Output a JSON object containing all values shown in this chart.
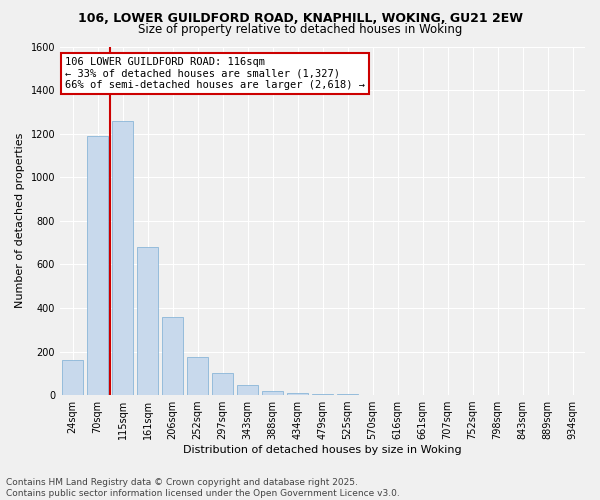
{
  "title_line1": "106, LOWER GUILDFORD ROAD, KNAPHILL, WOKING, GU21 2EW",
  "title_line2": "Size of property relative to detached houses in Woking",
  "xlabel": "Distribution of detached houses by size in Woking",
  "ylabel": "Number of detached properties",
  "bar_categories": [
    "24sqm",
    "70sqm",
    "115sqm",
    "161sqm",
    "206sqm",
    "252sqm",
    "297sqm",
    "343sqm",
    "388sqm",
    "434sqm",
    "479sqm",
    "525sqm",
    "570sqm",
    "616sqm",
    "661sqm",
    "707sqm",
    "752sqm",
    "798sqm",
    "843sqm",
    "889sqm",
    "934sqm"
  ],
  "bar_values": [
    160,
    1190,
    1260,
    680,
    360,
    175,
    100,
    45,
    20,
    8,
    5,
    3,
    2,
    1,
    1,
    0,
    0,
    0,
    0,
    0,
    0
  ],
  "bar_color": "#c8d9ec",
  "bar_edge_color": "#7aadd4",
  "highlight_color": "#cc0000",
  "vline_position": 1.5,
  "annotation_text": "106 LOWER GUILDFORD ROAD: 116sqm\n← 33% of detached houses are smaller (1,327)\n66% of semi-detached houses are larger (2,618) →",
  "annotation_box_color": "#ffffff",
  "annotation_border_color": "#cc0000",
  "ylim": [
    0,
    1600
  ],
  "yticks": [
    0,
    200,
    400,
    600,
    800,
    1000,
    1200,
    1400,
    1600
  ],
  "footer_line1": "Contains HM Land Registry data © Crown copyright and database right 2025.",
  "footer_line2": "Contains public sector information licensed under the Open Government Licence v3.0.",
  "bg_color": "#f0f0f0",
  "grid_color": "#ffffff",
  "title_fontsize": 9,
  "subtitle_fontsize": 8.5,
  "axis_label_fontsize": 8,
  "tick_fontsize": 7,
  "annotation_fontsize": 7.5,
  "footer_fontsize": 6.5
}
